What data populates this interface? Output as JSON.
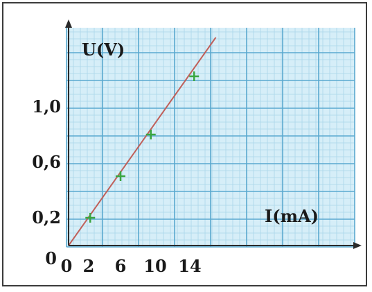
{
  "chart_data": {
    "type": "scatter",
    "x_unit_label": "I(mA)",
    "y_unit_label": "U(V)",
    "x_ticks": [
      "0",
      "2",
      "6",
      "10",
      "14"
    ],
    "y_ticks": [
      "0",
      "0,2",
      "0,6",
      "1,0"
    ],
    "x_tick_values": [
      0,
      2,
      6,
      10,
      14
    ],
    "y_tick_values": [
      0,
      0.2,
      0.6,
      1.0
    ],
    "xlim": [
      0,
      21
    ],
    "ylim": [
      0,
      1.5
    ],
    "grid": true,
    "points": [
      {
        "x": 2.5,
        "y": 0.2
      },
      {
        "x": 6.0,
        "y": 0.5
      },
      {
        "x": 9.5,
        "y": 0.8
      },
      {
        "x": 14.5,
        "y": 1.22
      }
    ],
    "fit_line": {
      "x": [
        0,
        17
      ],
      "y": [
        0,
        1.5
      ]
    },
    "colors": {
      "grid_major": "#5aa9cf",
      "grid_minor": "#a9d6ea",
      "background": "#d6eef8",
      "fit_line": "#c0605a",
      "points": "#3aa640",
      "axes": "#2a2a2a"
    }
  }
}
